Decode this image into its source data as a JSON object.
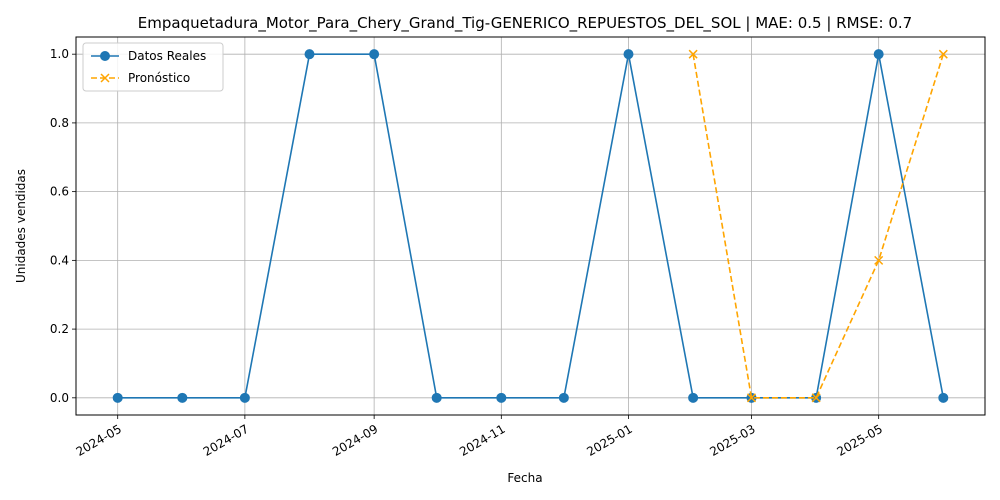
{
  "chart_data": {
    "type": "line",
    "title": "Empaquetadura_Motor_Para_Chery_Grand_Tig-GENERICO_REPUESTOS_DEL_SOL | MAE: 0.5 | RMSE: 0.7",
    "xlabel": "Fecha",
    "ylabel": "Unidades vendidas",
    "x_ticks": [
      "2024-05",
      "2024-07",
      "2024-09",
      "2024-11",
      "2025-01",
      "2025-03",
      "2025-05"
    ],
    "y_ticks": [
      "0.0",
      "0.2",
      "0.4",
      "0.6",
      "0.8",
      "1.0"
    ],
    "ylim": [
      -0.05,
      1.05
    ],
    "xlim": [
      "2024-04-11",
      "2025-06-21"
    ],
    "grid": true,
    "legend_position": "top-left",
    "series": [
      {
        "name": "Datos Reales",
        "color": "#1f77b4",
        "line_style": "solid",
        "marker": "circle",
        "points": [
          {
            "x": "2024-05-01",
            "y": 0
          },
          {
            "x": "2024-06-01",
            "y": 0
          },
          {
            "x": "2024-07-01",
            "y": 0
          },
          {
            "x": "2024-08-01",
            "y": 1
          },
          {
            "x": "2024-09-01",
            "y": 1
          },
          {
            "x": "2024-10-01",
            "y": 0
          },
          {
            "x": "2024-11-01",
            "y": 0
          },
          {
            "x": "2024-12-01",
            "y": 0
          },
          {
            "x": "2025-01-01",
            "y": 1
          },
          {
            "x": "2025-02-01",
            "y": 0
          },
          {
            "x": "2025-03-01",
            "y": 0
          },
          {
            "x": "2025-04-01",
            "y": 0
          },
          {
            "x": "2025-05-01",
            "y": 1
          },
          {
            "x": "2025-06-01",
            "y": 0
          }
        ]
      },
      {
        "name": "Pronóstico",
        "color": "#ffa500",
        "line_style": "dashed",
        "marker": "x",
        "points": [
          {
            "x": "2025-02-01",
            "y": 1.0
          },
          {
            "x": "2025-03-01",
            "y": 0.0
          },
          {
            "x": "2025-04-01",
            "y": 0.0
          },
          {
            "x": "2025-05-01",
            "y": 0.4
          },
          {
            "x": "2025-06-01",
            "y": 1.0
          }
        ]
      }
    ]
  }
}
